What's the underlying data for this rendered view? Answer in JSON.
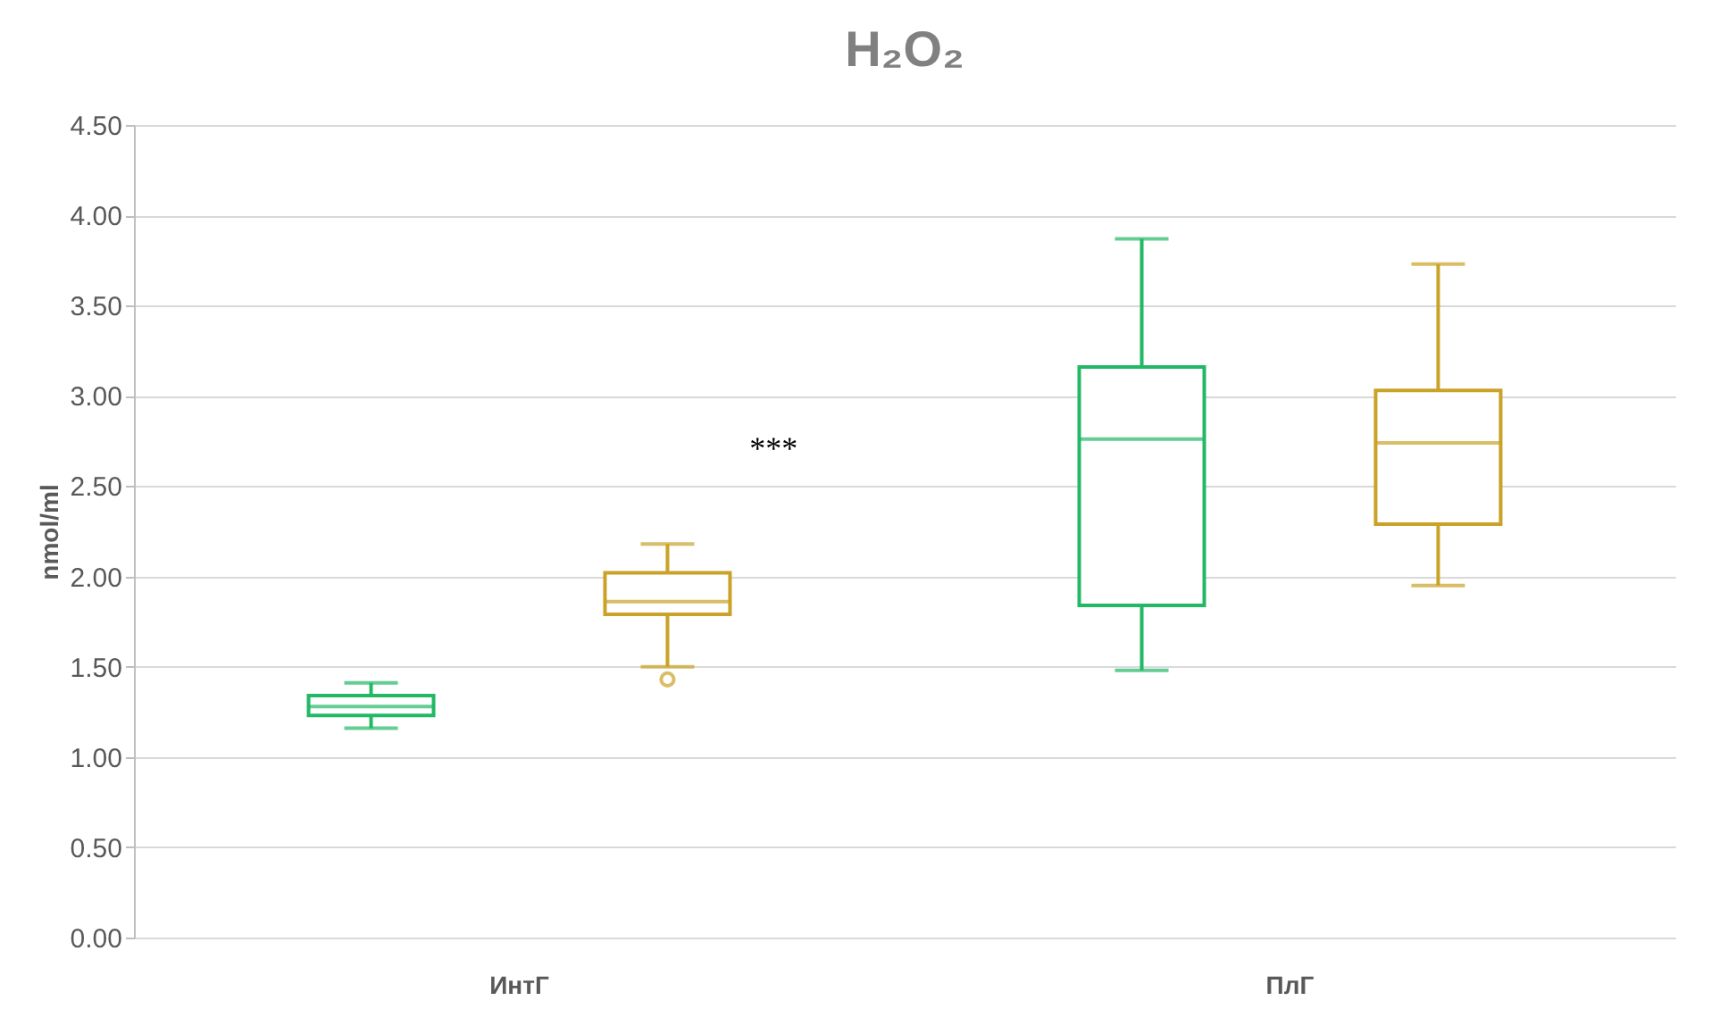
{
  "chart_data": {
    "type": "box",
    "title": "H₂O₂",
    "ylabel": "nmol/ml",
    "categories": [
      "ИнтГ",
      "ПлГ"
    ],
    "series": [
      {
        "color": "#22b865",
        "boxes": [
          {
            "low": 1.16,
            "q1": 1.23,
            "median": 1.28,
            "q3": 1.34,
            "high": 1.41
          },
          {
            "low": 1.48,
            "q1": 1.84,
            "median": 2.76,
            "q3": 3.16,
            "high": 3.87
          }
        ]
      },
      {
        "color": "#c9a227",
        "boxes": [
          {
            "low": 1.5,
            "q1": 1.79,
            "median": 1.86,
            "q3": 2.02,
            "high": 2.18,
            "outliers": [
              1.43
            ]
          },
          {
            "low": 1.95,
            "q1": 2.29,
            "median": 2.74,
            "q3": 3.03,
            "high": 3.73
          }
        ]
      }
    ],
    "ylim": [
      0,
      4.5
    ],
    "yticks": [
      {
        "value": 0,
        "label": "0.00"
      },
      {
        "value": 0.5,
        "label": "0.50"
      },
      {
        "value": 1,
        "label": "1.00"
      },
      {
        "value": 1.5,
        "label": "1.50"
      },
      {
        "value": 2,
        "label": "2.00"
      },
      {
        "value": 2.5,
        "label": "2.50"
      },
      {
        "value": 3,
        "label": "3.00"
      },
      {
        "value": 3.5,
        "label": "3.50"
      },
      {
        "value": 4,
        "label": "4.00"
      },
      {
        "value": 4.5,
        "label": "4.50"
      }
    ],
    "grid": "y",
    "legend": false,
    "marker": "circle",
    "annotations": [
      "***"
    ]
  }
}
